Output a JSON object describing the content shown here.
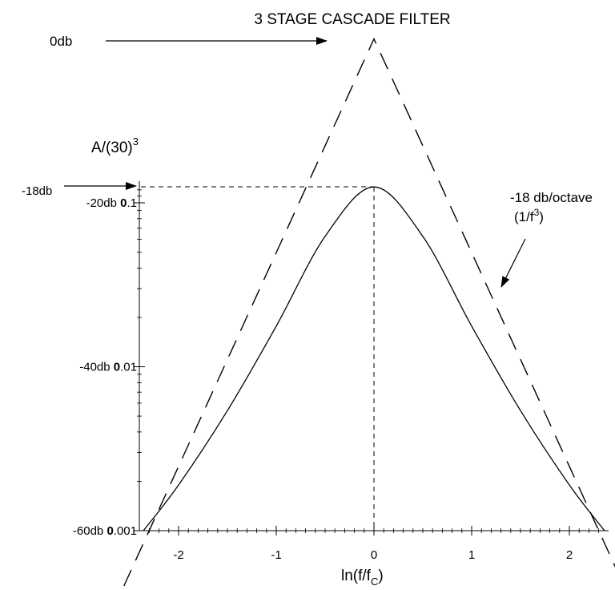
{
  "chart_data": {
    "type": "line",
    "title": "3 STAGE CASCADE FILTER",
    "ylabel": "A/(30)",
    "ylabel_sup": "3",
    "xlabel_main": "ln(f/f",
    "xlabel_sub": "C",
    "xlabel_close": ")",
    "x_ticks": [
      {
        "value": -2,
        "label": "-2"
      },
      {
        "value": -1,
        "label": "-1"
      },
      {
        "value": 0,
        "label": "0"
      },
      {
        "value": 1,
        "label": "1"
      },
      {
        "value": 2,
        "label": "2"
      }
    ],
    "y_ticks": [
      {
        "value": 0.1,
        "db": "-20db",
        "label": "0.1"
      },
      {
        "value": 0.01,
        "db": "-40db",
        "label": "0.01"
      },
      {
        "value": 0.001,
        "db": "-60db",
        "label": "0.001"
      }
    ],
    "y_scale": "log",
    "xlim": [
      -2.4,
      2.4
    ],
    "ylim": [
      0.001,
      1.0
    ],
    "annotations": {
      "zero_db": "0db",
      "peak_db": "-18db",
      "slope_label": "-18 db/octave",
      "slope_formula": "(1/f",
      "slope_formula_sup": "3",
      "slope_formula_close": ")"
    },
    "series": [
      {
        "style": "solid",
        "points": [
          {
            "x": -2.36,
            "y": 0.001
          },
          {
            "x": -2.0,
            "y": 0.0019
          },
          {
            "x": -1.5,
            "y": 0.0054
          },
          {
            "x": -1.0,
            "y": 0.0177
          },
          {
            "x": -0.5,
            "y": 0.0624
          },
          {
            "x": 0.0,
            "y": 0.125
          },
          {
            "x": 0.5,
            "y": 0.0624
          },
          {
            "x": 1.0,
            "y": 0.0177
          },
          {
            "x": 1.5,
            "y": 0.0054
          },
          {
            "x": 2.0,
            "y": 0.0019
          },
          {
            "x": 2.36,
            "y": 0.001
          }
        ]
      },
      {
        "style": "dashed",
        "points": [
          {
            "x": -2.56,
            "y": 0.00046
          },
          {
            "x": 0.0,
            "y": 1.0
          },
          {
            "x": 2.56,
            "y": 0.00046
          }
        ]
      }
    ]
  }
}
